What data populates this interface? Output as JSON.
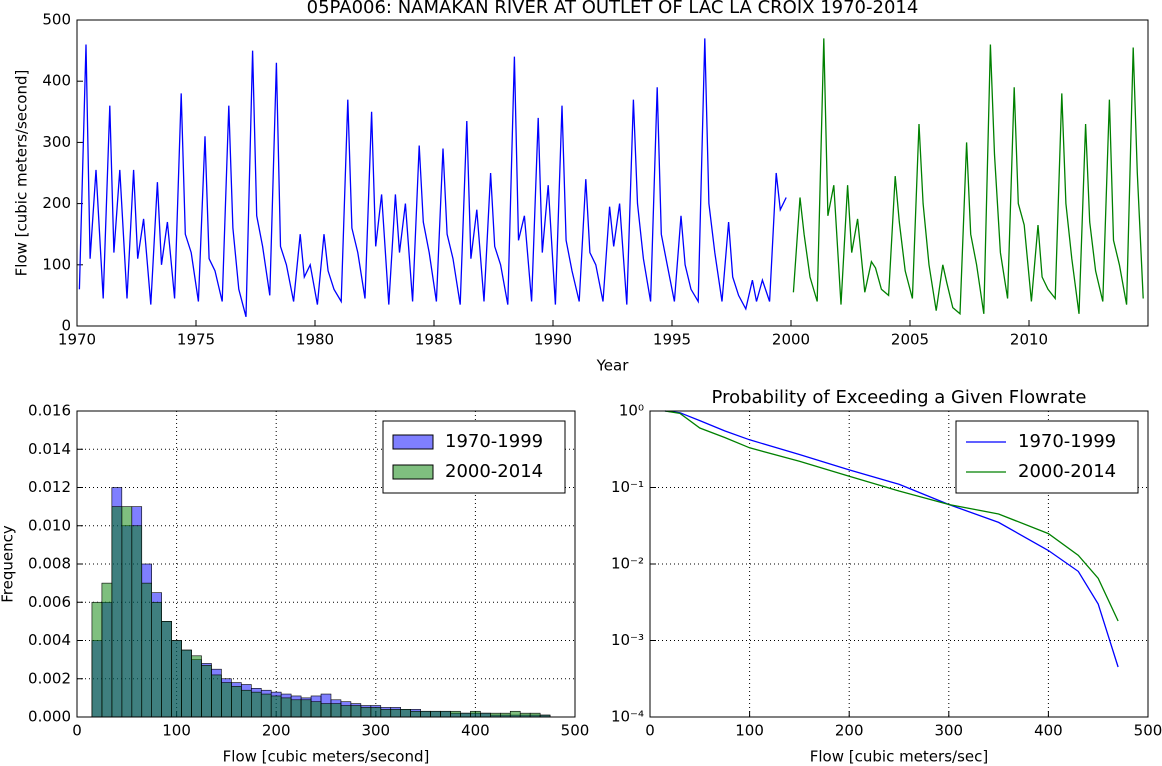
{
  "chart_data": [
    {
      "type": "line",
      "title": "05PA006: NAMAKAN RIVER AT OUTLET OF LAC LA CROIX 1970-2014",
      "xlabel": "Year",
      "ylabel": "Flow [cubic meters/second]",
      "xlim": [
        1970,
        2015
      ],
      "ylim": [
        0,
        500
      ],
      "xticks": [
        1970,
        1975,
        1980,
        1985,
        1990,
        1995,
        2000,
        2005,
        2010
      ],
      "yticks": [
        0,
        100,
        200,
        300,
        400,
        500
      ],
      "grid": false,
      "series": [
        {
          "color": "#0000ff",
          "x": [
            1970.1,
            1970.38,
            1970.55,
            1970.8,
            1971.1,
            1971.38,
            1971.55,
            1971.8,
            1972.1,
            1972.38,
            1972.55,
            1972.8,
            1973.1,
            1973.38,
            1973.55,
            1973.8,
            1974.1,
            1974.38,
            1974.55,
            1974.8,
            1975.1,
            1975.38,
            1975.55,
            1975.8,
            1976.1,
            1976.38,
            1976.55,
            1976.8,
            1977.1,
            1977.38,
            1977.55,
            1977.8,
            1978.1,
            1978.38,
            1978.55,
            1978.8,
            1979.1,
            1979.38,
            1979.55,
            1979.8,
            1980.1,
            1980.38,
            1980.55,
            1980.8,
            1981.1,
            1981.38,
            1981.55,
            1981.8,
            1982.1,
            1982.38,
            1982.55,
            1982.8,
            1983.1,
            1983.38,
            1983.55,
            1983.8,
            1984.1,
            1984.38,
            1984.55,
            1984.8,
            1985.1,
            1985.38,
            1985.55,
            1985.8,
            1986.1,
            1986.38,
            1986.55,
            1986.8,
            1987.1,
            1987.38,
            1987.55,
            1987.8,
            1988.1,
            1988.38,
            1988.55,
            1988.8,
            1989.1,
            1989.38,
            1989.55,
            1989.8,
            1990.1,
            1990.38,
            1990.55,
            1990.8,
            1991.1,
            1991.38,
            1991.55,
            1991.8,
            1992.1,
            1992.38,
            1992.55,
            1992.8,
            1993.1,
            1993.38,
            1993.55,
            1993.8,
            1994.1,
            1994.38,
            1994.55,
            1994.8,
            1995.1,
            1995.38,
            1995.55,
            1995.8,
            1996.1,
            1996.38,
            1996.55,
            1996.8,
            1997.1,
            1997.38,
            1997.55,
            1997.8,
            1998.1,
            1998.38,
            1998.55,
            1998.8,
            1999.1,
            1999.38,
            1999.55,
            1999.8
          ],
          "values": [
            60,
            460,
            110,
            255,
            45,
            360,
            120,
            255,
            45,
            255,
            110,
            175,
            35,
            235,
            100,
            170,
            45,
            380,
            150,
            120,
            40,
            310,
            110,
            90,
            40,
            360,
            160,
            60,
            15,
            450,
            180,
            130,
            50,
            430,
            130,
            100,
            40,
            150,
            80,
            100,
            35,
            150,
            90,
            60,
            40,
            370,
            160,
            120,
            45,
            350,
            130,
            215,
            35,
            215,
            120,
            200,
            40,
            295,
            170,
            120,
            40,
            290,
            150,
            110,
            35,
            335,
            110,
            190,
            40,
            250,
            130,
            100,
            35,
            440,
            140,
            180,
            40,
            340,
            120,
            230,
            35,
            360,
            140,
            90,
            40,
            240,
            120,
            100,
            40,
            195,
            130,
            200,
            35,
            370,
            200,
            110,
            40,
            390,
            150,
            100,
            40,
            180,
            100,
            60,
            40,
            470,
            200,
            120,
            40,
            170,
            80,
            50,
            28,
            75,
            40,
            75,
            40,
            250,
            190,
            210
          ]
        },
        {
          "color": "#008000",
          "x": [
            2000.1,
            2000.38,
            2000.55,
            2000.8,
            2001.1,
            2001.38,
            2001.55,
            2001.8,
            2002.1,
            2002.38,
            2002.55,
            2002.8,
            2003.1,
            2003.38,
            2003.55,
            2003.8,
            2004.1,
            2004.38,
            2004.55,
            2004.8,
            2005.1,
            2005.38,
            2005.55,
            2005.8,
            2006.1,
            2006.38,
            2006.55,
            2006.8,
            2007.1,
            2007.38,
            2007.55,
            2007.8,
            2008.1,
            2008.38,
            2008.55,
            2008.8,
            2009.1,
            2009.38,
            2009.55,
            2009.8,
            2010.1,
            2010.38,
            2010.55,
            2010.8,
            2011.1,
            2011.38,
            2011.55,
            2011.8,
            2012.1,
            2012.38,
            2012.55,
            2012.8,
            2013.1,
            2013.38,
            2013.55,
            2013.8,
            2014.1,
            2014.38,
            2014.55,
            2014.8
          ],
          "values": [
            55,
            210,
            150,
            80,
            40,
            470,
            180,
            230,
            35,
            230,
            120,
            175,
            55,
            105,
            95,
            60,
            50,
            245,
            170,
            90,
            45,
            330,
            200,
            100,
            25,
            100,
            70,
            30,
            20,
            300,
            150,
            100,
            20,
            460,
            280,
            120,
            45,
            390,
            200,
            165,
            40,
            165,
            80,
            60,
            45,
            380,
            200,
            110,
            20,
            330,
            170,
            90,
            40,
            370,
            140,
            100,
            35,
            455,
            250,
            45
          ]
        }
      ]
    },
    {
      "type": "histogram",
      "xlabel": "Flow [cubic meters/second]",
      "ylabel": "Frequency",
      "xlim": [
        0,
        500
      ],
      "ylim": [
        0,
        0.016
      ],
      "xticks": [
        0,
        100,
        200,
        300,
        400,
        500
      ],
      "yticks": [
        {
          "value": 0,
          "label": "0.000"
        },
        {
          "value": 0.002,
          "label": "0.002"
        },
        {
          "value": 0.004,
          "label": "0.004"
        },
        {
          "value": 0.006,
          "label": "0.006"
        },
        {
          "value": 0.008,
          "label": "0.008"
        },
        {
          "value": 0.01,
          "label": "0.010"
        },
        {
          "value": 0.012,
          "label": "0.012"
        },
        {
          "value": 0.014,
          "label": "0.014"
        },
        {
          "value": 0.016,
          "label": "0.016"
        }
      ],
      "grid": true,
      "legend": "upper right",
      "bins": [
        15,
        25,
        35,
        45,
        55,
        65,
        75,
        85,
        95,
        105,
        115,
        125,
        135,
        145,
        155,
        165,
        175,
        185,
        195,
        205,
        215,
        225,
        235,
        245,
        255,
        265,
        275,
        285,
        295,
        305,
        315,
        325,
        335,
        345,
        355,
        365,
        375,
        385,
        395,
        405,
        415,
        425,
        435,
        445,
        455,
        465,
        475
      ],
      "series": [
        {
          "name": "1970-1999",
          "color": "#0000ff",
          "values": [
            0.004,
            0.006,
            0.012,
            0.01,
            0.011,
            0.008,
            0.0065,
            0.005,
            0.004,
            0.0035,
            0.003,
            0.0028,
            0.0025,
            0.002,
            0.0018,
            0.0017,
            0.0015,
            0.0014,
            0.0013,
            0.0012,
            0.0011,
            0.001,
            0.0011,
            0.0012,
            0.0009,
            0.0008,
            0.0007,
            0.0006,
            0.0006,
            0.0005,
            0.0005,
            0.0004,
            0.0004,
            0.0003,
            0.0003,
            0.0003,
            0.0002,
            0.0002,
            0.0002,
            0.0002,
            0.0001,
            0.0001,
            0.0001,
            0.0001,
            0.0001,
            0.0001
          ]
        },
        {
          "name": "2000-2014",
          "color": "#008000",
          "values": [
            0.006,
            0.007,
            0.011,
            0.011,
            0.01,
            0.007,
            0.006,
            0.005,
            0.004,
            0.0035,
            0.0032,
            0.0027,
            0.0022,
            0.0018,
            0.0016,
            0.0014,
            0.0013,
            0.0012,
            0.0011,
            0.001,
            0.0009,
            0.0009,
            0.0008,
            0.0007,
            0.0007,
            0.0006,
            0.0006,
            0.0005,
            0.0005,
            0.0004,
            0.0004,
            0.0004,
            0.0003,
            0.0003,
            0.0003,
            0.0003,
            0.0003,
            0.0002,
            0.0003,
            0.0002,
            0.0002,
            0.0002,
            0.0003,
            0.0002,
            0.0002,
            0.0001
          ]
        }
      ]
    },
    {
      "type": "line",
      "title": "Probability of Exceeding a Given Flowrate",
      "xlabel": "Flow [cubic meters/sec]",
      "xlim": [
        0,
        500
      ],
      "ylim": [
        0.0001,
        1
      ],
      "ylog": true,
      "xticks": [
        0,
        100,
        200,
        300,
        400,
        500
      ],
      "yticks": [
        {
          "value": 0.0001,
          "label": "10⁻⁴"
        },
        {
          "value": 0.001,
          "label": "10⁻³"
        },
        {
          "value": 0.01,
          "label": "10⁻²"
        },
        {
          "value": 0.1,
          "label": "10⁻¹"
        },
        {
          "value": 1,
          "label": "10⁰"
        }
      ],
      "grid": true,
      "legend": "upper right",
      "series": [
        {
          "name": "1970-1999",
          "color": "#0000ff",
          "x": [
            15,
            30,
            50,
            75,
            100,
            150,
            200,
            250,
            300,
            350,
            400,
            430,
            450,
            470
          ],
          "values": [
            1,
            0.95,
            0.75,
            0.55,
            0.42,
            0.27,
            0.17,
            0.11,
            0.06,
            0.035,
            0.015,
            0.008,
            0.003,
            0.00045
          ]
        },
        {
          "name": "2000-2014",
          "color": "#008000",
          "x": [
            15,
            30,
            50,
            75,
            100,
            150,
            200,
            250,
            300,
            350,
            400,
            430,
            450,
            470
          ],
          "values": [
            1,
            0.93,
            0.6,
            0.45,
            0.33,
            0.22,
            0.14,
            0.09,
            0.06,
            0.045,
            0.025,
            0.013,
            0.0065,
            0.0018
          ]
        }
      ]
    }
  ]
}
